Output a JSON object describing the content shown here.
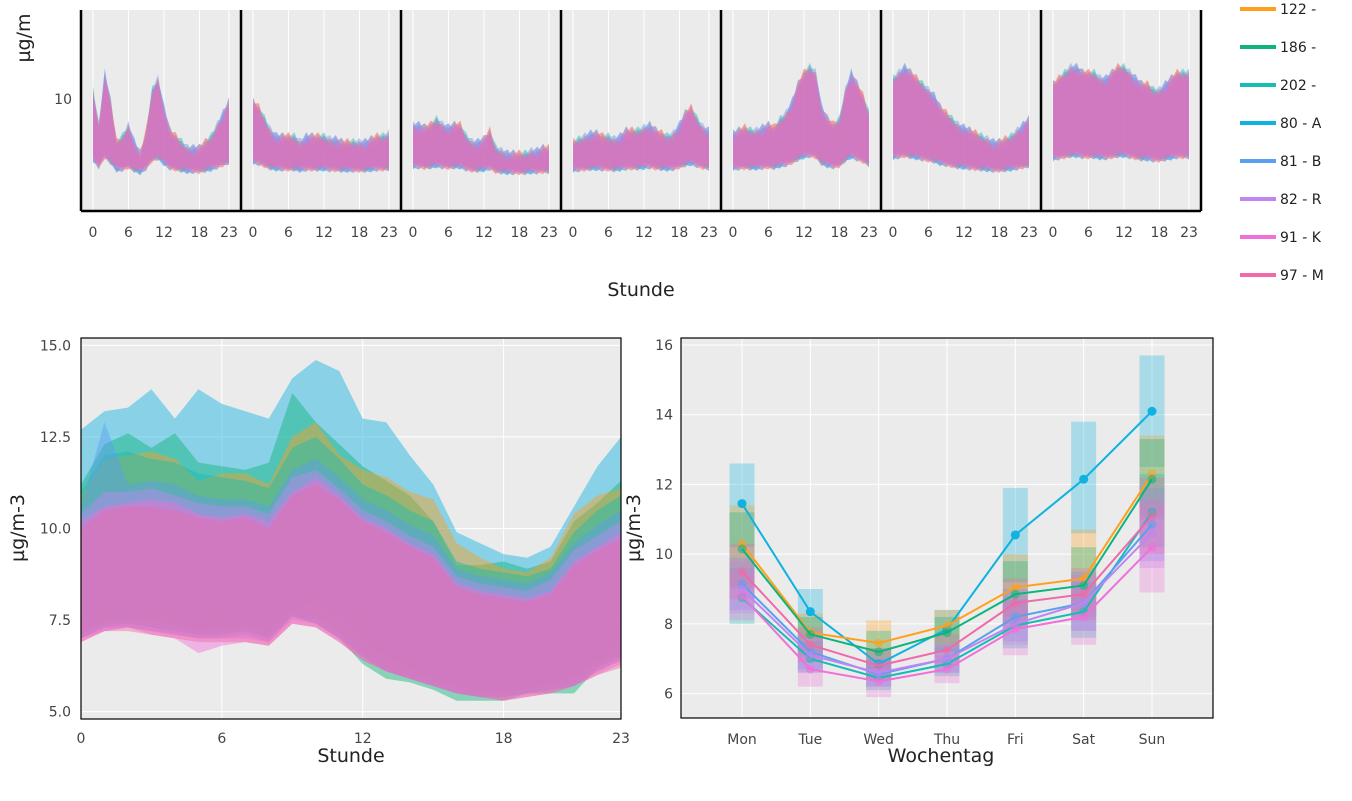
{
  "legend": {
    "entries": [
      {
        "label": "122 -",
        "color": "#ff9f1c"
      },
      {
        "label": "186 -",
        "color": "#0fb37b"
      },
      {
        "label": "202 -",
        "color": "#16bdb4"
      },
      {
        "label": "80 - A",
        "color": "#0fb2e0"
      },
      {
        "label": "81 - B",
        "color": "#5aa0f0"
      },
      {
        "label": "82 - R",
        "color": "#c085f0"
      },
      {
        "label": "91 - K",
        "color": "#f06fd8"
      },
      {
        "label": "97 - M",
        "color": "#f06aa8"
      }
    ]
  },
  "chart_data": [
    {
      "type": "area",
      "panels": 7,
      "x_ticks": [
        "0",
        "6",
        "12",
        "18",
        "23"
      ],
      "y_ticks": [
        "10"
      ],
      "ylabel": "µg/m",
      "xlabel": "Stunde",
      "series_note": "stacked per-weekday hourly bands, one overlay per station"
    },
    {
      "type": "area",
      "xlabel": "Stunde",
      "ylabel": "µg/m-3",
      "xlim": [
        0,
        23
      ],
      "ylim": [
        4.8,
        15.2
      ],
      "x_ticks": [
        "0",
        "6",
        "12",
        "18",
        "23"
      ],
      "y_ticks": [
        "5.0",
        "7.5",
        "10.0",
        "12.5",
        "15.0"
      ],
      "x": [
        0,
        1,
        2,
        3,
        4,
        5,
        6,
        7,
        8,
        9,
        10,
        11,
        12,
        13,
        14,
        15,
        16,
        17,
        18,
        19,
        20,
        21,
        22,
        23
      ],
      "series": [
        {
          "name": "80 - A",
          "color": "#0fb2e0",
          "upper": [
            12.7,
            13.2,
            13.3,
            13.8,
            13.0,
            13.8,
            13.4,
            13.2,
            13.0,
            14.1,
            14.6,
            14.3,
            13.0,
            12.9,
            12.0,
            11.2,
            9.9,
            9.6,
            9.3,
            9.2,
            9.5,
            10.6,
            11.7,
            12.5
          ],
          "lower": [
            7.1,
            7.5,
            7.6,
            7.5,
            7.4,
            7.2,
            7.3,
            7.4,
            7.2,
            7.8,
            8.0,
            7.5,
            6.9,
            6.5,
            6.2,
            5.9,
            5.7,
            5.6,
            5.5,
            5.6,
            5.8,
            6.0,
            6.4,
            6.8
          ]
        },
        {
          "name": "186 -",
          "color": "#0fb37b",
          "upper": [
            11.2,
            12.3,
            12.6,
            12.2,
            12.6,
            11.8,
            11.7,
            11.6,
            11.8,
            13.7,
            12.9,
            12.3,
            11.7,
            11.3,
            10.9,
            10.2,
            9.0,
            9.0,
            9.1,
            8.9,
            9.1,
            10.2,
            10.7,
            11.3
          ],
          "lower": [
            7.0,
            7.3,
            7.4,
            7.3,
            7.2,
            7.1,
            7.1,
            7.2,
            7.0,
            7.6,
            7.4,
            7.0,
            6.3,
            5.9,
            5.8,
            5.6,
            5.3,
            5.3,
            5.3,
            5.5,
            5.5,
            5.5,
            6.2,
            6.5
          ]
        },
        {
          "name": "122 -",
          "color": "#ff9f1c",
          "upper": [
            10.9,
            11.9,
            12.0,
            12.1,
            11.9,
            11.3,
            11.5,
            11.5,
            11.2,
            12.5,
            12.9,
            12.0,
            11.6,
            11.4,
            11.0,
            10.8,
            9.6,
            9.2,
            8.9,
            8.8,
            9.2,
            10.4,
            10.9,
            11.1
          ],
          "lower": [
            7.2,
            7.4,
            7.5,
            7.4,
            7.3,
            7.2,
            7.2,
            7.3,
            7.1,
            7.7,
            7.6,
            7.2,
            6.6,
            6.2,
            6.0,
            5.8,
            5.6,
            5.5,
            5.4,
            5.6,
            5.7,
            5.8,
            6.3,
            6.6
          ]
        },
        {
          "name": "202 -",
          "color": "#16bdb4",
          "upper": [
            11.0,
            12.0,
            12.1,
            11.9,
            11.8,
            11.5,
            11.4,
            11.3,
            11.1,
            12.2,
            12.5,
            11.9,
            11.2,
            10.9,
            10.5,
            10.2,
            9.1,
            8.9,
            8.8,
            8.7,
            8.9,
            9.9,
            10.5,
            10.9
          ],
          "lower": [
            7.1,
            7.4,
            7.4,
            7.3,
            7.2,
            7.1,
            7.1,
            7.2,
            7.0,
            7.6,
            7.5,
            7.1,
            6.5,
            6.1,
            5.9,
            5.7,
            5.5,
            5.4,
            5.4,
            5.5,
            5.6,
            5.7,
            6.2,
            6.5
          ]
        },
        {
          "name": "81 - B",
          "color": "#5aa0f0",
          "upper": [
            10.6,
            12.9,
            11.2,
            11.3,
            11.2,
            10.9,
            10.8,
            10.8,
            10.6,
            11.6,
            11.9,
            11.4,
            10.8,
            10.5,
            10.1,
            9.8,
            8.9,
            8.7,
            8.6,
            8.5,
            8.8,
            9.6,
            10.1,
            10.5
          ],
          "lower": [
            7.0,
            7.3,
            7.3,
            7.2,
            7.1,
            7.0,
            7.0,
            7.1,
            6.9,
            7.6,
            7.4,
            7.0,
            6.5,
            6.1,
            5.9,
            5.7,
            5.5,
            5.4,
            5.4,
            5.5,
            5.6,
            5.7,
            6.1,
            6.4
          ]
        },
        {
          "name": "82 - R",
          "color": "#c085f0",
          "upper": [
            10.4,
            11.0,
            11.0,
            11.1,
            10.9,
            10.7,
            10.6,
            10.6,
            10.4,
            11.4,
            11.6,
            11.1,
            10.5,
            10.2,
            9.8,
            9.5,
            8.7,
            8.5,
            8.4,
            8.3,
            8.6,
            9.4,
            9.8,
            10.2
          ],
          "lower": [
            7.0,
            7.2,
            7.3,
            7.2,
            7.1,
            7.0,
            7.0,
            7.0,
            6.9,
            7.5,
            7.4,
            7.0,
            6.5,
            6.1,
            5.9,
            5.7,
            5.5,
            5.4,
            5.4,
            5.5,
            5.6,
            5.7,
            6.1,
            6.4
          ]
        },
        {
          "name": "91 - K",
          "color": "#f06fd8",
          "upper": [
            10.2,
            10.6,
            10.7,
            10.8,
            10.7,
            10.4,
            10.3,
            10.4,
            10.2,
            11.0,
            11.4,
            10.9,
            10.3,
            10.0,
            9.6,
            9.3,
            8.5,
            8.3,
            8.2,
            8.1,
            8.3,
            9.1,
            9.5,
            9.9
          ],
          "lower": [
            6.9,
            7.2,
            7.3,
            7.1,
            7.0,
            6.6,
            6.8,
            6.9,
            6.8,
            7.4,
            7.3,
            6.9,
            6.4,
            6.1,
            5.9,
            5.7,
            5.5,
            5.4,
            5.3,
            5.4,
            5.5,
            5.7,
            6.0,
            6.3
          ]
        },
        {
          "name": "97 - M",
          "color": "#f06aa8",
          "upper": [
            10.0,
            10.5,
            10.6,
            10.6,
            10.5,
            10.3,
            10.2,
            10.3,
            10.0,
            10.9,
            11.2,
            10.8,
            10.2,
            9.9,
            9.5,
            9.2,
            8.4,
            8.2,
            8.1,
            8.0,
            8.2,
            9.0,
            9.4,
            9.7
          ],
          "lower": [
            6.9,
            7.2,
            7.2,
            7.1,
            7.0,
            6.9,
            6.9,
            6.9,
            6.8,
            7.4,
            7.3,
            6.9,
            6.4,
            6.1,
            5.9,
            5.7,
            5.5,
            5.4,
            5.3,
            5.4,
            5.5,
            5.7,
            6.0,
            6.2
          ]
        }
      ]
    },
    {
      "type": "line",
      "xlabel": "Wochentag",
      "ylabel": "µg/m-3",
      "ylim": [
        5.3,
        16.2
      ],
      "categories": [
        "Mon",
        "Tue",
        "Wed",
        "Thu",
        "Fri",
        "Sat",
        "Sun"
      ],
      "y_ticks": [
        "6",
        "8",
        "10",
        "12",
        "14",
        "16"
      ],
      "series": [
        {
          "name": "80 - A",
          "color": "#0fb2e0",
          "values": [
            11.45,
            8.35,
            6.85,
            7.85,
            10.55,
            12.15,
            14.1
          ],
          "band_lower": [
            10.2,
            7.6,
            6.4,
            7.2,
            9.2,
            10.6,
            12.5
          ],
          "band_upper": [
            12.6,
            9.0,
            7.3,
            8.4,
            11.9,
            13.8,
            15.7
          ]
        },
        {
          "name": "122 -",
          "color": "#ff9f1c",
          "values": [
            10.3,
            7.75,
            7.45,
            7.95,
            9.05,
            9.3,
            12.3
          ],
          "band_lower": [
            9.1,
            7.2,
            6.9,
            7.4,
            8.2,
            8.4,
            11.1
          ],
          "band_upper": [
            11.4,
            8.3,
            8.1,
            8.4,
            10.0,
            10.7,
            13.4
          ]
        },
        {
          "name": "186 -",
          "color": "#0fb37b",
          "values": [
            10.15,
            7.7,
            7.2,
            7.75,
            8.85,
            9.1,
            12.15
          ],
          "band_lower": [
            9.0,
            7.1,
            6.7,
            7.2,
            8.0,
            8.2,
            11.0
          ],
          "band_upper": [
            11.2,
            8.2,
            7.8,
            8.2,
            9.8,
            10.2,
            13.3
          ]
        },
        {
          "name": "202 -",
          "color": "#16bdb4",
          "values": [
            8.75,
            7.0,
            6.45,
            6.85,
            7.95,
            8.35,
            11.2
          ],
          "band_lower": [
            8.0,
            6.6,
            6.1,
            6.5,
            7.3,
            7.6,
            10.2
          ],
          "band_upper": [
            9.6,
            7.5,
            6.9,
            7.3,
            8.7,
            9.2,
            12.3
          ]
        },
        {
          "name": "81 - B",
          "color": "#5aa0f0",
          "values": [
            9.15,
            7.2,
            6.55,
            7.0,
            8.2,
            8.6,
            10.85
          ],
          "band_lower": [
            8.4,
            6.7,
            6.2,
            6.6,
            7.5,
            7.8,
            9.8
          ],
          "band_upper": [
            9.9,
            7.7,
            7.0,
            7.4,
            9.0,
            9.5,
            11.9
          ]
        },
        {
          "name": "82 - R",
          "color": "#c085f0",
          "values": [
            9.0,
            7.1,
            6.6,
            7.0,
            8.0,
            8.6,
            10.6
          ],
          "band_lower": [
            8.3,
            6.6,
            6.2,
            6.6,
            7.4,
            7.8,
            9.6
          ],
          "band_upper": [
            9.8,
            7.6,
            7.0,
            7.4,
            8.8,
            9.4,
            11.6
          ]
        },
        {
          "name": "91 - K",
          "color": "#f06fd8",
          "values": [
            8.8,
            6.7,
            6.35,
            6.7,
            7.85,
            8.2,
            10.2
          ],
          "band_lower": [
            8.1,
            6.2,
            5.9,
            6.3,
            7.1,
            7.4,
            8.9
          ],
          "band_upper": [
            9.5,
            7.2,
            6.8,
            7.1,
            8.6,
            9.0,
            11.4
          ]
        },
        {
          "name": "97 - M",
          "color": "#f06aa8",
          "values": [
            9.5,
            7.4,
            6.8,
            7.25,
            8.6,
            8.85,
            11.1
          ],
          "band_lower": [
            8.7,
            6.9,
            6.4,
            6.8,
            7.9,
            8.1,
            10.0
          ],
          "band_upper": [
            10.3,
            7.9,
            7.3,
            7.7,
            9.3,
            9.6,
            12.2
          ]
        }
      ]
    }
  ]
}
